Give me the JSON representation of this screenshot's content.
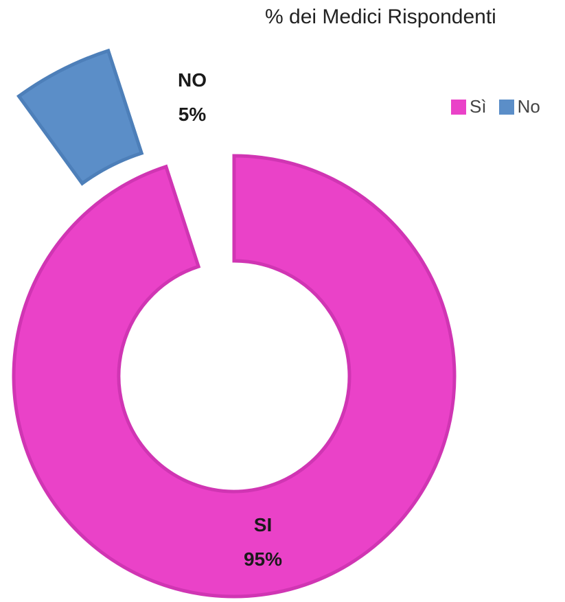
{
  "chart_data": {
    "type": "pie",
    "variant": "doughnut-exploded",
    "title": "% dei Medici Rispondenti",
    "categories": [
      "Sì",
      "No"
    ],
    "values": [
      95,
      5
    ],
    "slice_labels": [
      {
        "name": "SI",
        "value": "95%"
      },
      {
        "name": "NO",
        "value": "5%"
      }
    ],
    "colors": [
      "#ea42c8",
      "#5b8ec8"
    ],
    "edge_colors": [
      "#d035b3",
      "#4d7fb9"
    ],
    "legend_position": "right",
    "legend": [
      "Sì",
      "No"
    ]
  }
}
